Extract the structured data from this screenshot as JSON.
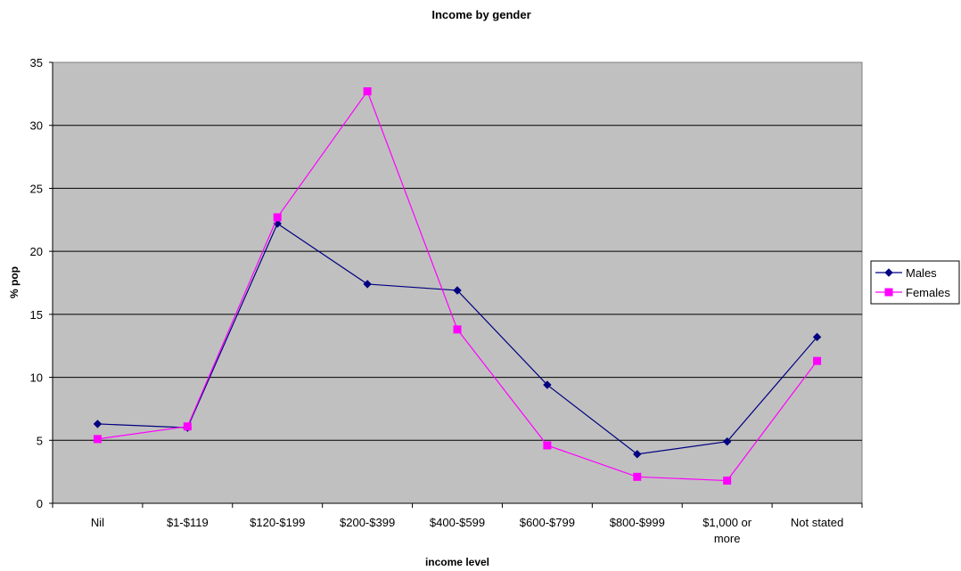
{
  "chart_data": {
    "type": "line",
    "title": "Income by gender",
    "xlabel": "income level",
    "ylabel": "% pop",
    "categories": [
      [
        "Nil"
      ],
      [
        "$1-$119"
      ],
      [
        "$120-$199"
      ],
      [
        "$200-$399"
      ],
      [
        "$400-$599"
      ],
      [
        "$600-$799"
      ],
      [
        "$800-$999"
      ],
      [
        "$1,000 or",
        "more"
      ],
      [
        "Not stated"
      ]
    ],
    "ylim": [
      0,
      35
    ],
    "yticks": [
      0,
      5,
      10,
      15,
      20,
      25,
      30,
      35
    ],
    "grid": true,
    "plot_background": "#c0c0c0",
    "legend_position": "right",
    "series": [
      {
        "name": "Males",
        "color": "#000080",
        "marker": "diamond",
        "values": [
          6.3,
          6.0,
          22.2,
          17.4,
          16.9,
          9.4,
          3.9,
          4.9,
          13.2
        ]
      },
      {
        "name": "Females",
        "color": "#ff00ff",
        "marker": "square",
        "values": [
          5.1,
          6.1,
          22.7,
          32.7,
          13.8,
          4.6,
          2.1,
          1.8,
          11.3
        ]
      }
    ]
  }
}
